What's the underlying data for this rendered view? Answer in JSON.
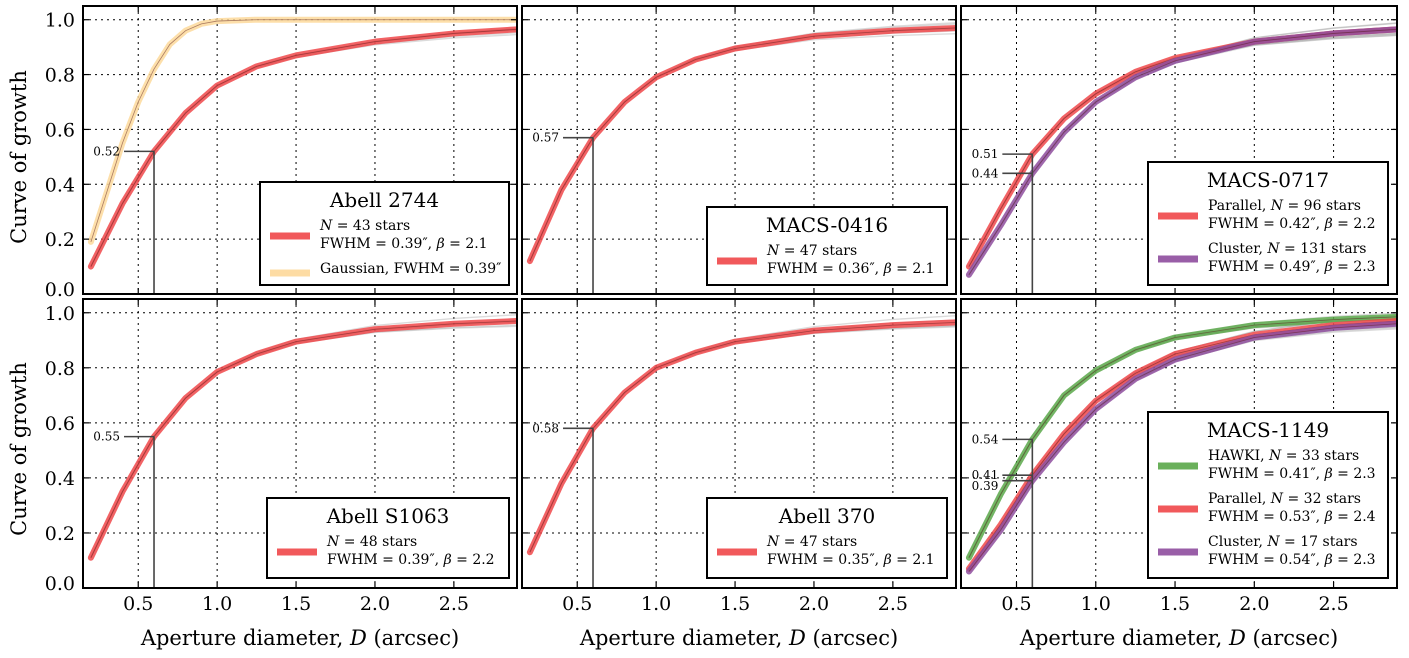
{
  "figure": {
    "ylabel": "Curve of growth",
    "xlabel": "Aperture diameter, D (arcsec)"
  },
  "chart_data": [
    {
      "type": "line",
      "title": "Abell 2744",
      "xlim": [
        0.15,
        2.9
      ],
      "ylim": [
        0.0,
        1.05
      ],
      "xticks": [
        "0.5",
        "1.0",
        "1.5",
        "2.0",
        "2.5"
      ],
      "yticks": [
        "0.0",
        "0.2",
        "0.4",
        "0.6",
        "0.8",
        "1.0"
      ],
      "grid": true,
      "legend_position": "lower-right",
      "annotation_x": 0.6,
      "series": [
        {
          "name": "N = 43 stars",
          "detail": "FWHM = 0.39″, β = 2.1",
          "color": "#f0484a",
          "x": [
            0.2,
            0.4,
            0.6,
            0.8,
            1.0,
            1.25,
            1.5,
            2.0,
            2.5,
            2.9
          ],
          "y": [
            0.1,
            0.33,
            0.52,
            0.66,
            0.76,
            0.83,
            0.87,
            0.92,
            0.95,
            0.965
          ],
          "marker_value": "0.52"
        },
        {
          "name": "Gaussian, FWHM = 0.39″",
          "detail": "",
          "color": "#fdd99b",
          "x": [
            0.2,
            0.3,
            0.4,
            0.5,
            0.6,
            0.7,
            0.8,
            0.9,
            1.0,
            1.25,
            1.5,
            2.0,
            2.5,
            2.9
          ],
          "y": [
            0.19,
            0.37,
            0.55,
            0.7,
            0.82,
            0.91,
            0.96,
            0.985,
            0.995,
            1.0,
            1.0,
            1.0,
            1.0,
            1.0
          ]
        }
      ]
    },
    {
      "type": "line",
      "title": "MACS-0416",
      "xlim": [
        0.15,
        2.9
      ],
      "ylim": [
        0.0,
        1.05
      ],
      "xticks": [
        "0.5",
        "1.0",
        "1.5",
        "2.0",
        "2.5"
      ],
      "yticks": [
        "0.0",
        "0.2",
        "0.4",
        "0.6",
        "0.8",
        "1.0"
      ],
      "grid": true,
      "legend_position": "lower-right",
      "annotation_x": 0.6,
      "series": [
        {
          "name": "N = 47 stars",
          "detail": "FWHM = 0.36″, β = 2.1",
          "color": "#f0484a",
          "x": [
            0.2,
            0.4,
            0.6,
            0.8,
            1.0,
            1.25,
            1.5,
            2.0,
            2.5,
            2.9
          ],
          "y": [
            0.12,
            0.38,
            0.57,
            0.7,
            0.79,
            0.855,
            0.895,
            0.94,
            0.96,
            0.97
          ],
          "marker_value": "0.57"
        }
      ]
    },
    {
      "type": "line",
      "title": "MACS-0717",
      "xlim": [
        0.15,
        2.9
      ],
      "ylim": [
        0.0,
        1.05
      ],
      "xticks": [
        "0.5",
        "1.0",
        "1.5",
        "2.0",
        "2.5"
      ],
      "yticks": [
        "0.0",
        "0.2",
        "0.4",
        "0.6",
        "0.8",
        "1.0"
      ],
      "grid": true,
      "legend_position": "lower-right",
      "annotation_x": 0.6,
      "series": [
        {
          "name": "Parallel, N = 96 stars",
          "detail": "FWHM = 0.42″, β = 2.2",
          "color": "#f0484a",
          "x": [
            0.2,
            0.4,
            0.6,
            0.8,
            1.0,
            1.25,
            1.5,
            2.0,
            2.5,
            2.9
          ],
          "y": [
            0.1,
            0.31,
            0.51,
            0.64,
            0.73,
            0.81,
            0.86,
            0.92,
            0.95,
            0.965
          ],
          "marker_value": "0.51"
        },
        {
          "name": "Cluster, N = 131 stars",
          "detail": "FWHM = 0.49″, β = 2.3",
          "color": "#8e4d9e",
          "x": [
            0.2,
            0.4,
            0.6,
            0.8,
            1.0,
            1.25,
            1.5,
            2.0,
            2.5,
            2.9
          ],
          "y": [
            0.07,
            0.25,
            0.44,
            0.59,
            0.7,
            0.79,
            0.85,
            0.92,
            0.95,
            0.965
          ],
          "marker_value": "0.44"
        }
      ]
    },
    {
      "type": "line",
      "title": "Abell S1063",
      "xlim": [
        0.15,
        2.9
      ],
      "ylim": [
        0.0,
        1.05
      ],
      "xticks": [
        "0.5",
        "1.0",
        "1.5",
        "2.0",
        "2.5"
      ],
      "yticks": [
        "0.0",
        "0.2",
        "0.4",
        "0.6",
        "0.8",
        "1.0"
      ],
      "grid": true,
      "legend_position": "lower-right",
      "annotation_x": 0.6,
      "series": [
        {
          "name": "N = 48 stars",
          "detail": "FWHM = 0.39″, β = 2.2",
          "color": "#f0484a",
          "x": [
            0.2,
            0.4,
            0.6,
            0.8,
            1.0,
            1.25,
            1.5,
            2.0,
            2.5,
            2.9
          ],
          "y": [
            0.11,
            0.35,
            0.55,
            0.69,
            0.785,
            0.85,
            0.895,
            0.94,
            0.96,
            0.97
          ],
          "marker_value": "0.55"
        }
      ]
    },
    {
      "type": "line",
      "title": "Abell 370",
      "xlim": [
        0.15,
        2.9
      ],
      "ylim": [
        0.0,
        1.05
      ],
      "xticks": [
        "0.5",
        "1.0",
        "1.5",
        "2.0",
        "2.5"
      ],
      "yticks": [
        "0.0",
        "0.2",
        "0.4",
        "0.6",
        "0.8",
        "1.0"
      ],
      "grid": true,
      "legend_position": "lower-right",
      "annotation_x": 0.6,
      "series": [
        {
          "name": "N = 47 stars",
          "detail": "FWHM = 0.35″, β = 2.1",
          "color": "#f0484a",
          "x": [
            0.2,
            0.4,
            0.6,
            0.8,
            1.0,
            1.25,
            1.5,
            2.0,
            2.5,
            2.9
          ],
          "y": [
            0.13,
            0.38,
            0.58,
            0.71,
            0.8,
            0.855,
            0.895,
            0.935,
            0.955,
            0.965
          ],
          "marker_value": "0.58"
        }
      ]
    },
    {
      "type": "line",
      "title": "MACS-1149",
      "xlim": [
        0.15,
        2.9
      ],
      "ylim": [
        0.0,
        1.05
      ],
      "xticks": [
        "0.5",
        "1.0",
        "1.5",
        "2.0",
        "2.5"
      ],
      "yticks": [
        "0.0",
        "0.2",
        "0.4",
        "0.6",
        "0.8",
        "1.0"
      ],
      "grid": true,
      "legend_position": "lower-right",
      "annotation_x": 0.6,
      "series": [
        {
          "name": "HAWKI, N = 33 stars",
          "detail": "FWHM = 0.41″, β = 2.3",
          "color": "#5aa84a",
          "x": [
            0.2,
            0.4,
            0.6,
            0.8,
            1.0,
            1.25,
            1.5,
            2.0,
            2.5,
            2.9
          ],
          "y": [
            0.11,
            0.34,
            0.54,
            0.7,
            0.79,
            0.865,
            0.91,
            0.955,
            0.975,
            0.985
          ],
          "marker_value": "0.54"
        },
        {
          "name": "Parallel, N = 32 stars",
          "detail": "FWHM = 0.53″, β = 2.4",
          "color": "#f0484a",
          "x": [
            0.2,
            0.4,
            0.6,
            0.8,
            1.0,
            1.25,
            1.5,
            2.0,
            2.5,
            2.9
          ],
          "y": [
            0.07,
            0.23,
            0.41,
            0.56,
            0.68,
            0.78,
            0.85,
            0.92,
            0.955,
            0.97
          ],
          "marker_value": "0.41"
        },
        {
          "name": "Cluster, N = 17 stars",
          "detail": "FWHM = 0.54″, β = 2.3",
          "color": "#8e4d9e",
          "x": [
            0.2,
            0.4,
            0.6,
            0.8,
            1.0,
            1.25,
            1.5,
            2.0,
            2.5,
            2.9
          ],
          "y": [
            0.06,
            0.21,
            0.39,
            0.53,
            0.65,
            0.76,
            0.83,
            0.91,
            0.945,
            0.96
          ],
          "marker_value": "0.39"
        }
      ]
    }
  ]
}
